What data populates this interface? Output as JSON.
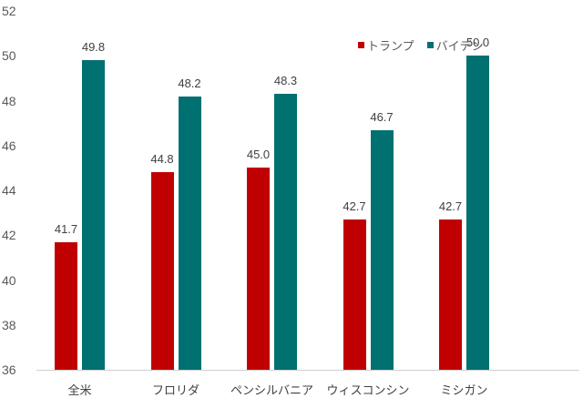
{
  "chart_data": {
    "type": "bar",
    "title": "",
    "xlabel": "",
    "ylabel": "",
    "ylim": [
      36,
      52
    ],
    "yticks": [
      36,
      38,
      40,
      42,
      44,
      46,
      48,
      50,
      52
    ],
    "grid": false,
    "legend_position": "top-right",
    "categories": [
      "全米",
      "フロリダ",
      "ペンシルバニア",
      "ウィスコンシン",
      "ミシガン"
    ],
    "series": [
      {
        "name": "トランプ",
        "color": "#c00000",
        "values": [
          41.7,
          44.8,
          45.0,
          42.7,
          42.7
        ],
        "labels": [
          "41.7",
          "44.8",
          "45.0",
          "42.7",
          "42.7"
        ]
      },
      {
        "name": "バイデン",
        "color": "#007070",
        "values": [
          49.8,
          48.2,
          48.3,
          46.7,
          50.0
        ],
        "labels": [
          "49.8",
          "48.2",
          "48.3",
          "46.7",
          "50.0"
        ]
      }
    ]
  }
}
